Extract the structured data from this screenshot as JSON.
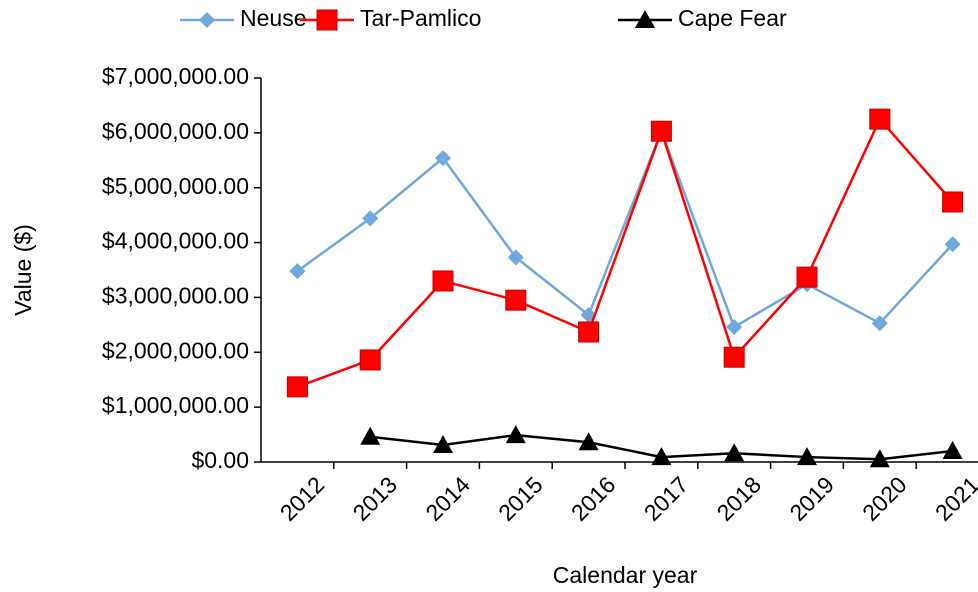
{
  "chart_data": {
    "type": "line",
    "categories": [
      "2012",
      "2013",
      "2014",
      "2015",
      "2016",
      "2017",
      "2018",
      "2019",
      "2020",
      "2021"
    ],
    "series": [
      {
        "name": "Neuse",
        "color": "#6fa8dc",
        "marker": "diamond",
        "values": [
          3480000,
          4440000,
          5540000,
          3730000,
          2680000,
          6030000,
          2460000,
          3240000,
          2530000,
          3970000
        ]
      },
      {
        "name": "Tar-Pamlico",
        "color": "#ff0000",
        "marker": "square",
        "values": [
          1370000,
          1860000,
          3300000,
          2950000,
          2370000,
          6030000,
          1910000,
          3370000,
          6250000,
          4740000
        ]
      },
      {
        "name": "Cape Fear",
        "color": "#000000",
        "marker": "triangle",
        "values": [
          null,
          460000,
          310000,
          490000,
          360000,
          90000,
          160000,
          90000,
          50000,
          200000
        ]
      }
    ],
    "ylim": [
      0,
      7000000
    ],
    "yticks": [
      {
        "value": 0,
        "label": "$0.00"
      },
      {
        "value": 1000000,
        "label": "$1,000,000.00"
      },
      {
        "value": 2000000,
        "label": "$2,000,000.00"
      },
      {
        "value": 3000000,
        "label": "$3,000,000.00"
      },
      {
        "value": 4000000,
        "label": "$4,000,000.00"
      },
      {
        "value": 5000000,
        "label": "$5,000,000.00"
      },
      {
        "value": 6000000,
        "label": "$6,000,000.00"
      },
      {
        "value": 7000000,
        "label": "$7,000,000.00"
      }
    ],
    "y_label": "Value ($)",
    "x_label": "Calendar year",
    "legend": "top"
  }
}
